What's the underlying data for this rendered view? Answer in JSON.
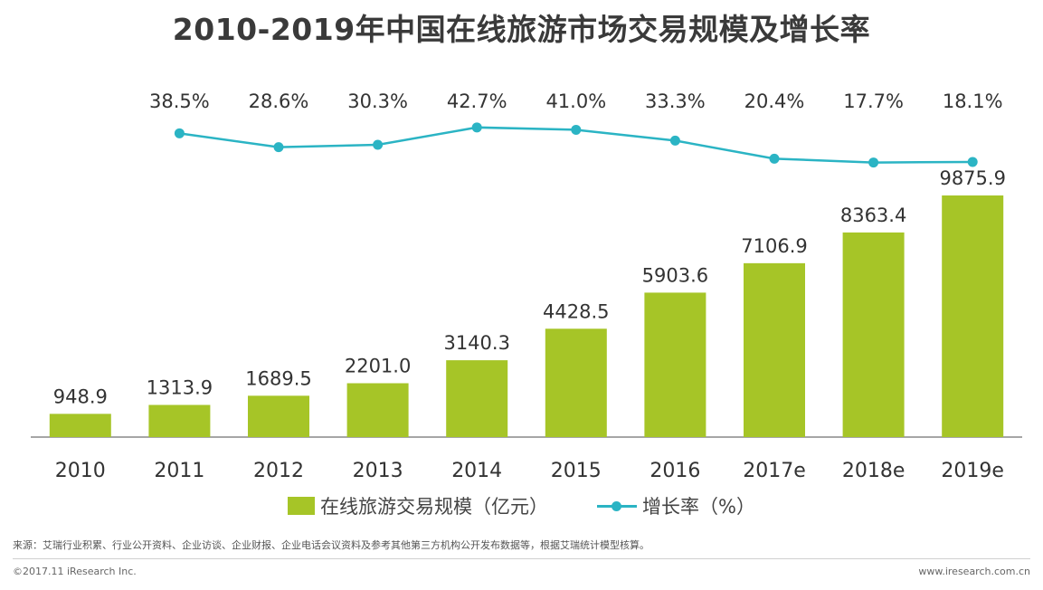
{
  "title": "2010-2019年中国在线旅游市场交易规模及增长率",
  "colors": {
    "bar": "#a6c527",
    "line": "#2bb4c4",
    "axis": "#888888",
    "title": "#3a3a3a"
  },
  "chart_data": {
    "type": "bar+line",
    "title": "2010-2019年中国在线旅游市场交易规模及增长率",
    "categories": [
      "2010",
      "2011",
      "2012",
      "2013",
      "2014",
      "2015",
      "2016",
      "2017e",
      "2018e",
      "2019e"
    ],
    "series": [
      {
        "name": "在线旅游交易规模（亿元）",
        "type": "bar",
        "values": [
          948.9,
          1313.9,
          1689.5,
          2201.0,
          3140.3,
          4428.5,
          5903.6,
          7106.9,
          8363.4,
          9875.9
        ],
        "labels": [
          "948.9",
          "1313.9",
          "1689.5",
          "2201.0",
          "3140.3",
          "4428.5",
          "5903.6",
          "7106.9",
          "8363.4",
          "9875.9"
        ]
      },
      {
        "name": "增长率（%）",
        "type": "line",
        "x": [
          "2011",
          "2012",
          "2013",
          "2014",
          "2015",
          "2016",
          "2017e",
          "2018e",
          "2019e"
        ],
        "values": [
          38.5,
          28.6,
          30.3,
          42.7,
          41.0,
          33.3,
          20.4,
          17.7,
          18.1
        ],
        "labels": [
          "38.5%",
          "28.6%",
          "30.3%",
          "42.7%",
          "41.0%",
          "33.3%",
          "20.4%",
          "17.7%",
          "18.1%"
        ]
      }
    ],
    "legend_position": "bottom",
    "grid": false
  },
  "legend": {
    "bar_label": "在线旅游交易规模（亿元）",
    "line_label": "增长率（%）"
  },
  "footer": {
    "source": "来源：艾瑞行业积累、行业公开资料、企业访谈、企业财报、企业电话会议资料及参考其他第三方机构公开发布数据等，根据艾瑞统计模型核算。",
    "copyright": "©2017.11 iResearch Inc.",
    "website": "www.iresearch.com.cn"
  }
}
